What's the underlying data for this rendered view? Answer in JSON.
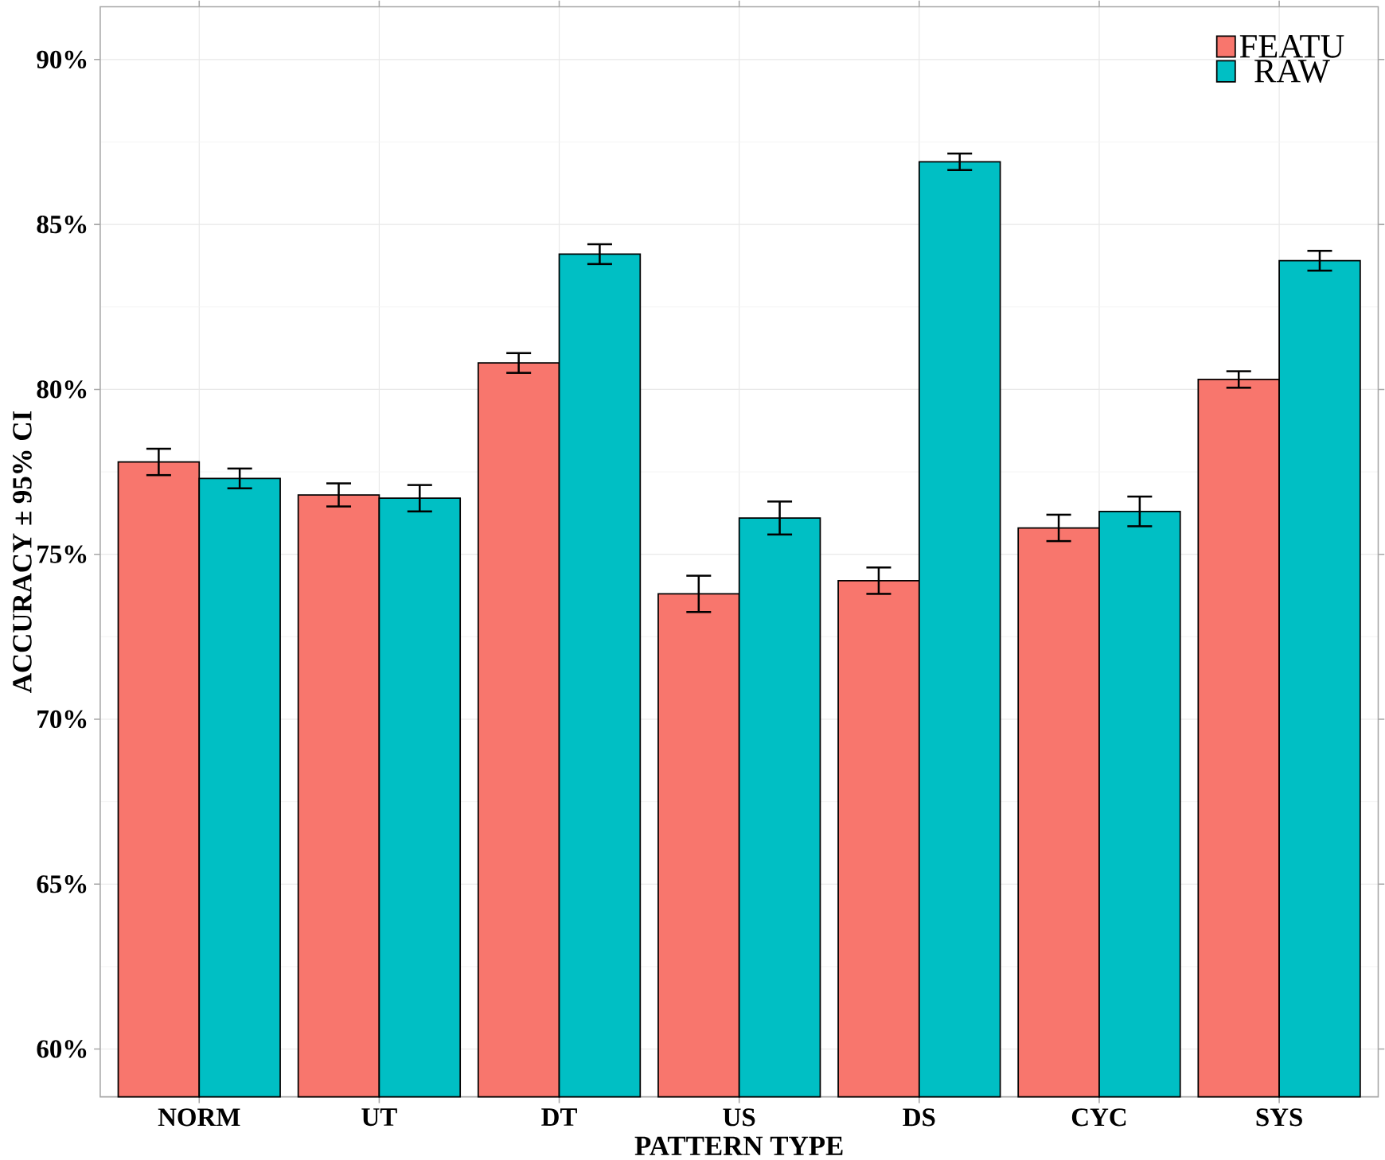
{
  "chart_data": {
    "type": "bar",
    "xlabel": "PATTERN TYPE",
    "ylabel": "ACCURACY ± 95% CI",
    "categories": [
      "NORM",
      "UT",
      "DT",
      "US",
      "DS",
      "CYC",
      "SYS"
    ],
    "series": [
      {
        "name": "FEATU",
        "color": "#f8766d",
        "values": [
          77.8,
          76.8,
          80.8,
          73.8,
          74.2,
          75.8,
          80.3
        ],
        "errors": [
          0.4,
          0.35,
          0.3,
          0.55,
          0.4,
          0.4,
          0.25
        ]
      },
      {
        "name": "RAW",
        "color": "#00bfc4",
        "values": [
          77.3,
          76.7,
          84.1,
          76.1,
          86.9,
          76.3,
          83.9
        ],
        "errors": [
          0.3,
          0.4,
          0.3,
          0.5,
          0.25,
          0.45,
          0.3
        ]
      }
    ],
    "ylim": [
      58.55,
      91.6
    ],
    "yticks": [
      {
        "value": 60,
        "label": "60%"
      },
      {
        "value": 65,
        "label": "65%"
      },
      {
        "value": 70,
        "label": "70%"
      },
      {
        "value": 75,
        "label": "75%"
      },
      {
        "value": 80,
        "label": "80%"
      },
      {
        "value": 85,
        "label": "85%"
      },
      {
        "value": 90,
        "label": "90%"
      }
    ],
    "grid": true,
    "legend": "top right"
  }
}
